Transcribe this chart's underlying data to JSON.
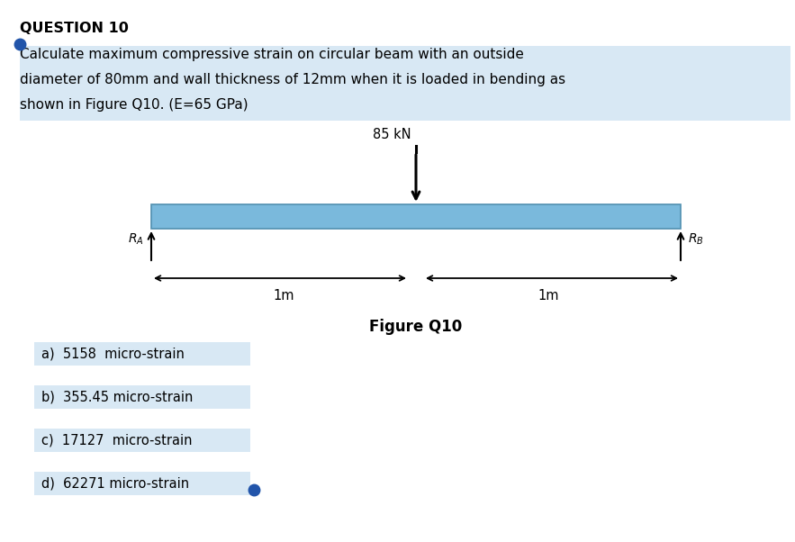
{
  "title": "QUESTION 10",
  "q_line1": "Calculate maximum compressive strain on circular beam with an outside",
  "q_line2": "diameter of 80mm and wall thickness of 12mm when it is loaded in bending as",
  "q_line3": "shown in Figure Q10. (E=65 GPa)",
  "figure_label": "Figure Q10",
  "load_label": "85 kN",
  "beam_color": "#7ab9dc",
  "beam_edge_color": "#5090b0",
  "bg_color": "#ffffff",
  "highlight_color": "#d8e8f4",
  "dot_color": "#2255aa",
  "dim_label_left": "1m",
  "dim_label_right": "1m",
  "options": [
    "a)  5158  micro-strain",
    "b)  355.45 micro-strain",
    "c)  17127  micro-strain",
    "d)  62271 micro-strain"
  ]
}
